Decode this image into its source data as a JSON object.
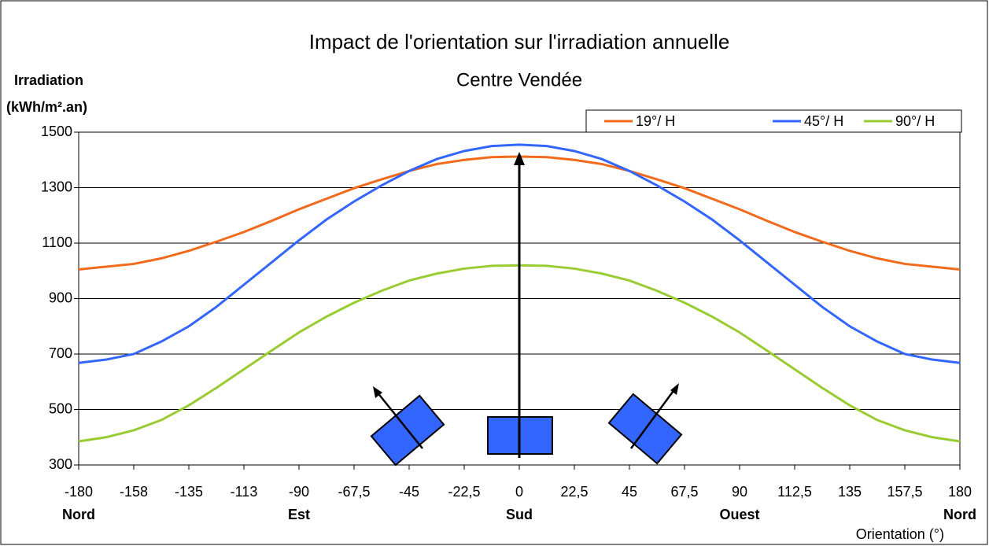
{
  "chart_data": {
    "type": "line",
    "title": "Impact de l'orientation sur l'irradiation annuelle",
    "subtitle": "Centre Vendée",
    "y_label": [
      "Irradiation",
      "(kWh/m².an)"
    ],
    "x_label": "Orientation (°)",
    "x": [
      -180,
      -168.75,
      -157.5,
      -146.25,
      -135,
      -123.75,
      -112.5,
      -101.25,
      -90,
      -78.75,
      -67.5,
      -56.25,
      -45,
      -33.75,
      -22.5,
      -11.25,
      0,
      11.25,
      22.5,
      33.75,
      45,
      56.25,
      67.5,
      78.75,
      90,
      101.25,
      112.5,
      123.75,
      135,
      146.25,
      157.5,
      168.75,
      180
    ],
    "series": [
      {
        "name": "19°/ H",
        "color": "#f26b1d",
        "values": [
          1005,
          1015,
          1025,
          1045,
          1072,
          1105,
          1140,
          1180,
          1222,
          1260,
          1298,
          1330,
          1360,
          1385,
          1400,
          1410,
          1412,
          1410,
          1400,
          1385,
          1360,
          1330,
          1298,
          1260,
          1222,
          1180,
          1140,
          1105,
          1072,
          1045,
          1025,
          1015,
          1005
        ]
      },
      {
        "name": "45°/ H",
        "color": "#3366ff",
        "values": [
          668,
          680,
          700,
          745,
          800,
          870,
          950,
          1030,
          1110,
          1185,
          1250,
          1308,
          1360,
          1403,
          1432,
          1450,
          1455,
          1450,
          1432,
          1403,
          1360,
          1308,
          1250,
          1185,
          1110,
          1030,
          950,
          870,
          800,
          745,
          700,
          680,
          668
        ]
      },
      {
        "name": "90°/ H",
        "color": "#99cc33",
        "values": [
          385,
          400,
          425,
          462,
          515,
          578,
          645,
          712,
          778,
          835,
          885,
          928,
          965,
          990,
          1008,
          1018,
          1020,
          1018,
          1008,
          990,
          965,
          928,
          885,
          835,
          778,
          712,
          645,
          578,
          515,
          462,
          425,
          400,
          385
        ]
      }
    ],
    "xlim": [
      -180,
      180
    ],
    "xticks": [
      -180,
      {
        "value": -157.5,
        "label": "-158"
      },
      -135,
      {
        "value": -112.5,
        "label": "-113"
      },
      -90,
      {
        "value": -67.5,
        "label": "-67,5"
      },
      -45,
      {
        "value": -22.5,
        "label": "-22,5"
      },
      0,
      {
        "value": 22.5,
        "label": "22,5"
      },
      45,
      {
        "value": 67.5,
        "label": "67,5"
      },
      90,
      {
        "value": 112.5,
        "label": "112,5"
      },
      135,
      {
        "value": 157.5,
        "label": "157,5"
      },
      180
    ],
    "direction_labels": [
      {
        "value": -180,
        "label": "Nord"
      },
      {
        "value": -90,
        "label": "Est"
      },
      {
        "value": 0,
        "label": "Sud"
      },
      {
        "value": 90,
        "label": "Ouest"
      },
      {
        "value": 180,
        "label": "Nord"
      }
    ],
    "ylim": [
      300,
      1500
    ],
    "yticks": [
      300,
      500,
      700,
      900,
      1100,
      1300,
      1500
    ],
    "grid": true,
    "legend": "top-right"
  }
}
